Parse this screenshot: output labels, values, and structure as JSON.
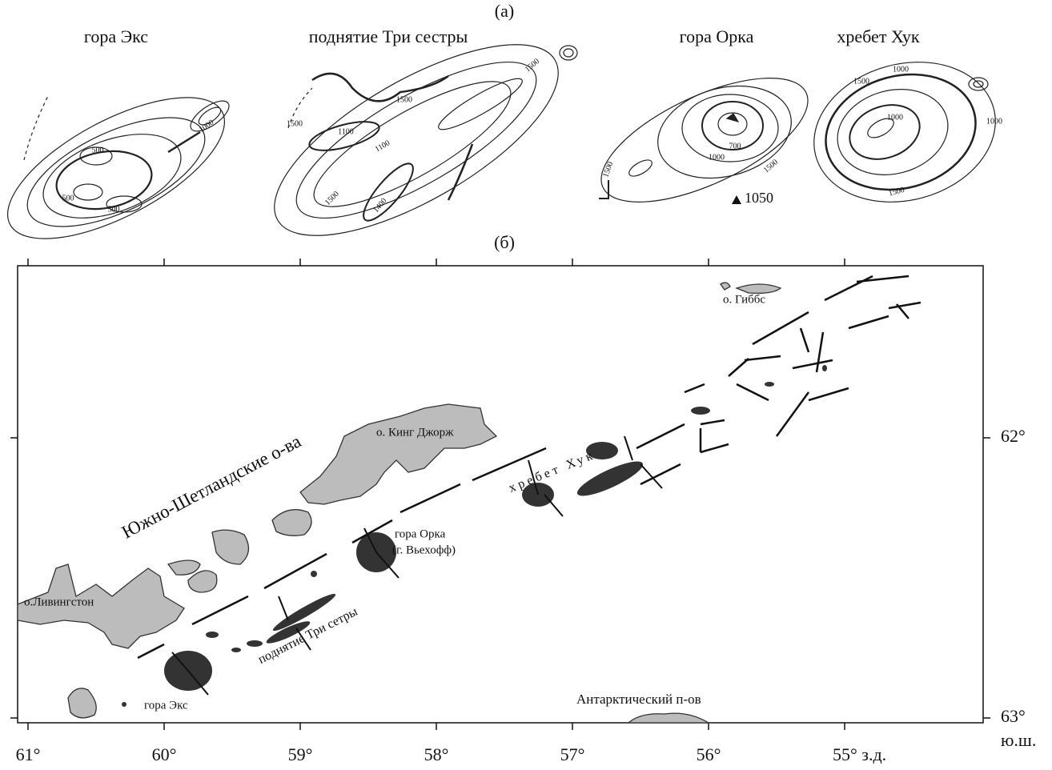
{
  "panel_a": {
    "label": "(а)",
    "maps": [
      {
        "title": "гора Экс",
        "contour_labels": [
          "500",
          "500",
          "500",
          "1000"
        ]
      },
      {
        "title": "поднятие Три сестры",
        "contour_labels": [
          "1500",
          "1100",
          "1100",
          "1500",
          "1500",
          "1500",
          "1400"
        ]
      },
      {
        "title": "гора Орка",
        "contour_labels": [
          "700",
          "1000",
          "1500",
          "1500"
        ],
        "spot_height": "1050"
      },
      {
        "title": "хребет Хук",
        "contour_labels": [
          "1000",
          "1500",
          "1000",
          "1000",
          "1500"
        ]
      }
    ]
  },
  "panel_b": {
    "label": "(б)",
    "places": [
      "о. Гиббс",
      "о. Кинг Джорж",
      "Южно-Шетландские о-ва",
      "хребет Хук",
      "гора Орка",
      "(г. Вьехофф)",
      "о.Ливингстон",
      "поднятие Три сетры",
      "гора Экс",
      "Антарктический п-ов"
    ],
    "longitude_ticks": [
      "61°",
      "60°",
      "59°",
      "58°",
      "57°",
      "56°",
      "55° з.д."
    ],
    "latitude_ticks": [
      "62°",
      "63°"
    ],
    "latitude_unit": "ю.ш."
  }
}
